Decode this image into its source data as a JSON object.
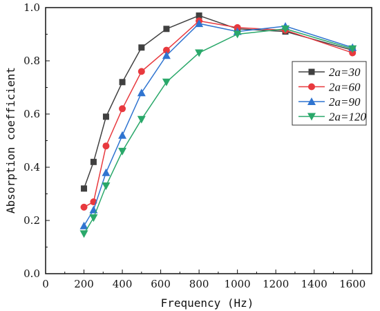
{
  "chart_data": {
    "type": "line",
    "title": "",
    "xlabel": "Frequency (Hz)",
    "ylabel": "Absorption coefficient",
    "xlim": [
      0,
      1700
    ],
    "ylim": [
      0,
      1.0
    ],
    "xticks": [
      0,
      200,
      400,
      600,
      800,
      1000,
      1200,
      1400,
      1600
    ],
    "yticks": [
      0.0,
      0.2,
      0.4,
      0.6,
      0.8,
      1.0
    ],
    "xtick_labels": [
      "0",
      "200",
      "400",
      "600",
      "800",
      "1000",
      "1200",
      "1400",
      "1600"
    ],
    "ytick_labels": [
      "0.0",
      "0.2",
      "0.4",
      "0.6",
      "0.8",
      "1.0"
    ],
    "grid": false,
    "legend_position": "right",
    "x": [
      200,
      250,
      315,
      400,
      500,
      630,
      800,
      1000,
      1250,
      1600
    ],
    "series": [
      {
        "name": "2a=30",
        "color": "#404040",
        "marker": "square",
        "values": [
          0.32,
          0.42,
          0.59,
          0.72,
          0.85,
          0.92,
          0.97,
          0.92,
          0.91,
          0.84
        ]
      },
      {
        "name": "2a=60",
        "color": "#e8393e",
        "marker": "circle",
        "values": [
          0.25,
          0.27,
          0.48,
          0.62,
          0.76,
          0.84,
          0.95,
          0.925,
          0.915,
          0.83
        ]
      },
      {
        "name": "2a=90",
        "color": "#2f74d0",
        "marker": "triangle-up",
        "values": [
          0.18,
          0.24,
          0.38,
          0.52,
          0.68,
          0.82,
          0.94,
          0.91,
          0.93,
          0.85
        ]
      },
      {
        "name": "2a=120",
        "color": "#2aa86a",
        "marker": "triangle-down",
        "values": [
          0.15,
          0.21,
          0.33,
          0.46,
          0.58,
          0.72,
          0.83,
          0.9,
          0.92,
          0.845
        ]
      }
    ]
  }
}
